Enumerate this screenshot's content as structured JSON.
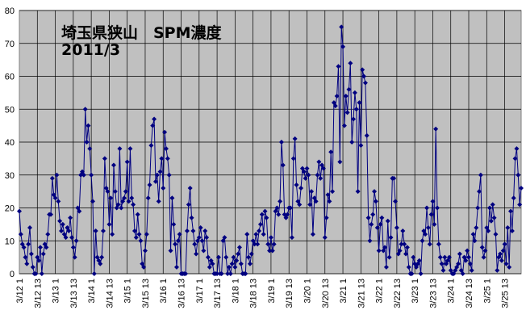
{
  "chart_data": {
    "type": "line",
    "title": "埼玉県狭山　SPM濃度",
    "subtitle": "2011/3",
    "categories": [
      "3/12 1",
      null,
      null,
      null,
      null,
      null,
      null,
      null,
      null,
      null,
      null,
      null,
      "3/12 13",
      null,
      null,
      null,
      null,
      null,
      null,
      null,
      null,
      null,
      null,
      null,
      "3/13 1",
      null,
      null,
      null,
      null,
      null,
      null,
      null,
      null,
      null,
      null,
      null,
      "3/13 13",
      null,
      null,
      null,
      null,
      null,
      null,
      null,
      null,
      null,
      null,
      null,
      "3/14 1",
      null,
      null,
      null,
      null,
      null,
      null,
      null,
      null,
      null,
      null,
      null,
      "3/14 13",
      null,
      null,
      null,
      null,
      null,
      null,
      null,
      null,
      null,
      null,
      null,
      "3/15 1",
      null,
      null,
      null,
      null,
      null,
      null,
      null,
      null,
      null,
      null,
      null,
      "3/15 13",
      null,
      null,
      null,
      null,
      null,
      null,
      null,
      null,
      null,
      null,
      null,
      "3/16 1",
      null,
      null,
      null,
      null,
      null,
      null,
      null,
      null,
      null,
      null,
      null,
      "3/16 13",
      null,
      null,
      null,
      null,
      null,
      null,
      null,
      null,
      null,
      null,
      null,
      "3/17 1",
      null,
      null,
      null,
      null,
      null,
      null,
      null,
      null,
      null,
      null,
      null,
      "3/17 13",
      null,
      null,
      null,
      null,
      null,
      null,
      null,
      null,
      null,
      null,
      null,
      "3/18 1",
      null,
      null,
      null,
      null,
      null,
      null,
      null,
      null,
      null,
      null,
      null,
      "3/18 13",
      null,
      null,
      null,
      null,
      null,
      null,
      null,
      null,
      null,
      null,
      null,
      "3/19 1",
      null,
      null,
      null,
      null,
      null,
      null,
      null,
      null,
      null,
      null,
      null,
      "3/19 13",
      null,
      null,
      null,
      null,
      null,
      null,
      null,
      null,
      null,
      null,
      null,
      "3/20 1",
      null,
      null,
      null,
      null,
      null,
      null,
      null,
      null,
      null,
      null,
      null,
      "3/20 13",
      null,
      null,
      null,
      null,
      null,
      null,
      null,
      null,
      null,
      null,
      null,
      "3/21 1",
      null,
      null,
      null,
      null,
      null,
      null,
      null,
      null,
      null,
      null,
      null,
      "3/21 13",
      null,
      null,
      null,
      null,
      null,
      null,
      null,
      null,
      null,
      null,
      null,
      "3/22 1",
      null,
      null,
      null,
      null,
      null,
      null,
      null,
      null,
      null,
      null,
      null,
      "3/22 13",
      null,
      null,
      null,
      null,
      null,
      null,
      null,
      null,
      null,
      null,
      null,
      "3/23 1",
      null,
      null,
      null,
      null,
      null,
      null,
      null,
      null,
      null,
      null,
      null,
      "3/23 13",
      null,
      null,
      null,
      null,
      null,
      null,
      null,
      null,
      null,
      null,
      null,
      "3/24 1",
      null,
      null,
      null,
      null,
      null,
      null,
      null,
      null,
      null,
      null,
      null,
      "3/24 13",
      null,
      null,
      null,
      null,
      null,
      null,
      null,
      null,
      null,
      null,
      null,
      "3/25 1",
      null,
      null,
      null,
      null,
      null,
      null,
      null,
      null,
      null,
      null,
      null,
      "3/25 13",
      null,
      null,
      null,
      null,
      null,
      null,
      null,
      null,
      null,
      null,
      null
    ],
    "values": [
      19,
      12,
      9,
      8,
      5,
      3,
      9,
      14,
      6,
      2,
      0,
      0,
      5,
      4,
      8,
      0,
      6,
      9,
      8,
      12,
      18,
      18,
      29,
      24,
      23,
      30,
      22,
      16,
      13,
      15,
      12,
      11,
      14,
      13,
      17,
      11,
      8,
      5,
      10,
      20,
      19,
      30,
      31,
      30,
      50,
      40,
      45,
      38,
      30,
      22,
      0,
      13,
      5,
      4,
      3,
      5,
      13,
      35,
      26,
      25,
      15,
      23,
      12,
      33,
      25,
      20,
      21,
      38,
      20,
      22,
      23,
      25,
      34,
      22,
      38,
      23,
      21,
      13,
      11,
      18,
      12,
      10,
      3,
      2,
      7,
      12,
      23,
      27,
      39,
      45,
      47,
      28,
      30,
      22,
      31,
      35,
      26,
      43,
      38,
      35,
      30,
      7,
      23,
      15,
      9,
      2,
      10,
      12,
      0,
      0,
      0,
      0,
      13,
      21,
      26,
      17,
      13,
      9,
      6,
      10,
      11,
      14,
      10,
      7,
      13,
      11,
      5,
      2,
      4,
      3,
      0,
      0,
      0,
      5,
      0,
      0,
      10,
      11,
      5,
      0,
      2,
      0,
      3,
      5,
      2,
      4,
      6,
      8,
      3,
      0,
      0,
      0,
      12,
      5,
      3,
      6,
      10,
      9,
      12,
      9,
      13,
      15,
      18,
      12,
      19,
      17,
      9,
      7,
      11,
      7,
      9,
      19,
      20,
      18,
      22,
      40,
      33,
      18,
      17,
      18,
      20,
      20,
      11,
      35,
      41,
      27,
      22,
      21,
      26,
      32,
      31,
      29,
      32,
      30,
      21,
      25,
      12,
      23,
      22,
      30,
      34,
      29,
      33,
      32,
      11,
      17,
      24,
      22,
      37,
      25,
      52,
      51,
      54,
      63,
      34,
      75,
      69,
      45,
      54,
      49,
      56,
      64,
      40,
      47,
      55,
      50,
      25,
      52,
      39,
      62,
      60,
      58,
      42,
      17,
      10,
      15,
      18,
      25,
      22,
      14,
      7,
      15,
      17,
      7,
      8,
      2,
      16,
      5,
      11,
      29,
      29,
      22,
      14,
      6,
      7,
      9,
      13,
      9,
      6,
      8,
      2,
      0,
      0,
      5,
      3,
      2,
      3,
      4,
      0,
      10,
      13,
      12,
      20,
      14,
      9,
      18,
      22,
      15,
      44,
      20,
      9,
      5,
      3,
      1,
      5,
      3,
      4,
      5,
      1,
      0,
      0,
      1,
      2,
      3,
      6,
      1,
      0,
      5,
      4,
      7,
      5,
      3,
      1,
      12,
      10,
      14,
      20,
      25,
      30,
      8,
      5,
      7,
      14,
      13,
      20,
      16,
      21,
      17,
      12,
      1,
      5,
      6,
      4,
      7,
      9,
      3,
      14,
      2,
      19,
      13,
      23,
      35,
      38,
      30,
      21,
      26
    ],
    "color": "#000080",
    "ylim": [
      0,
      80
    ],
    "yticks": [
      0,
      10,
      20,
      30,
      40,
      50,
      60,
      70,
      80
    ],
    "grid": true
  }
}
